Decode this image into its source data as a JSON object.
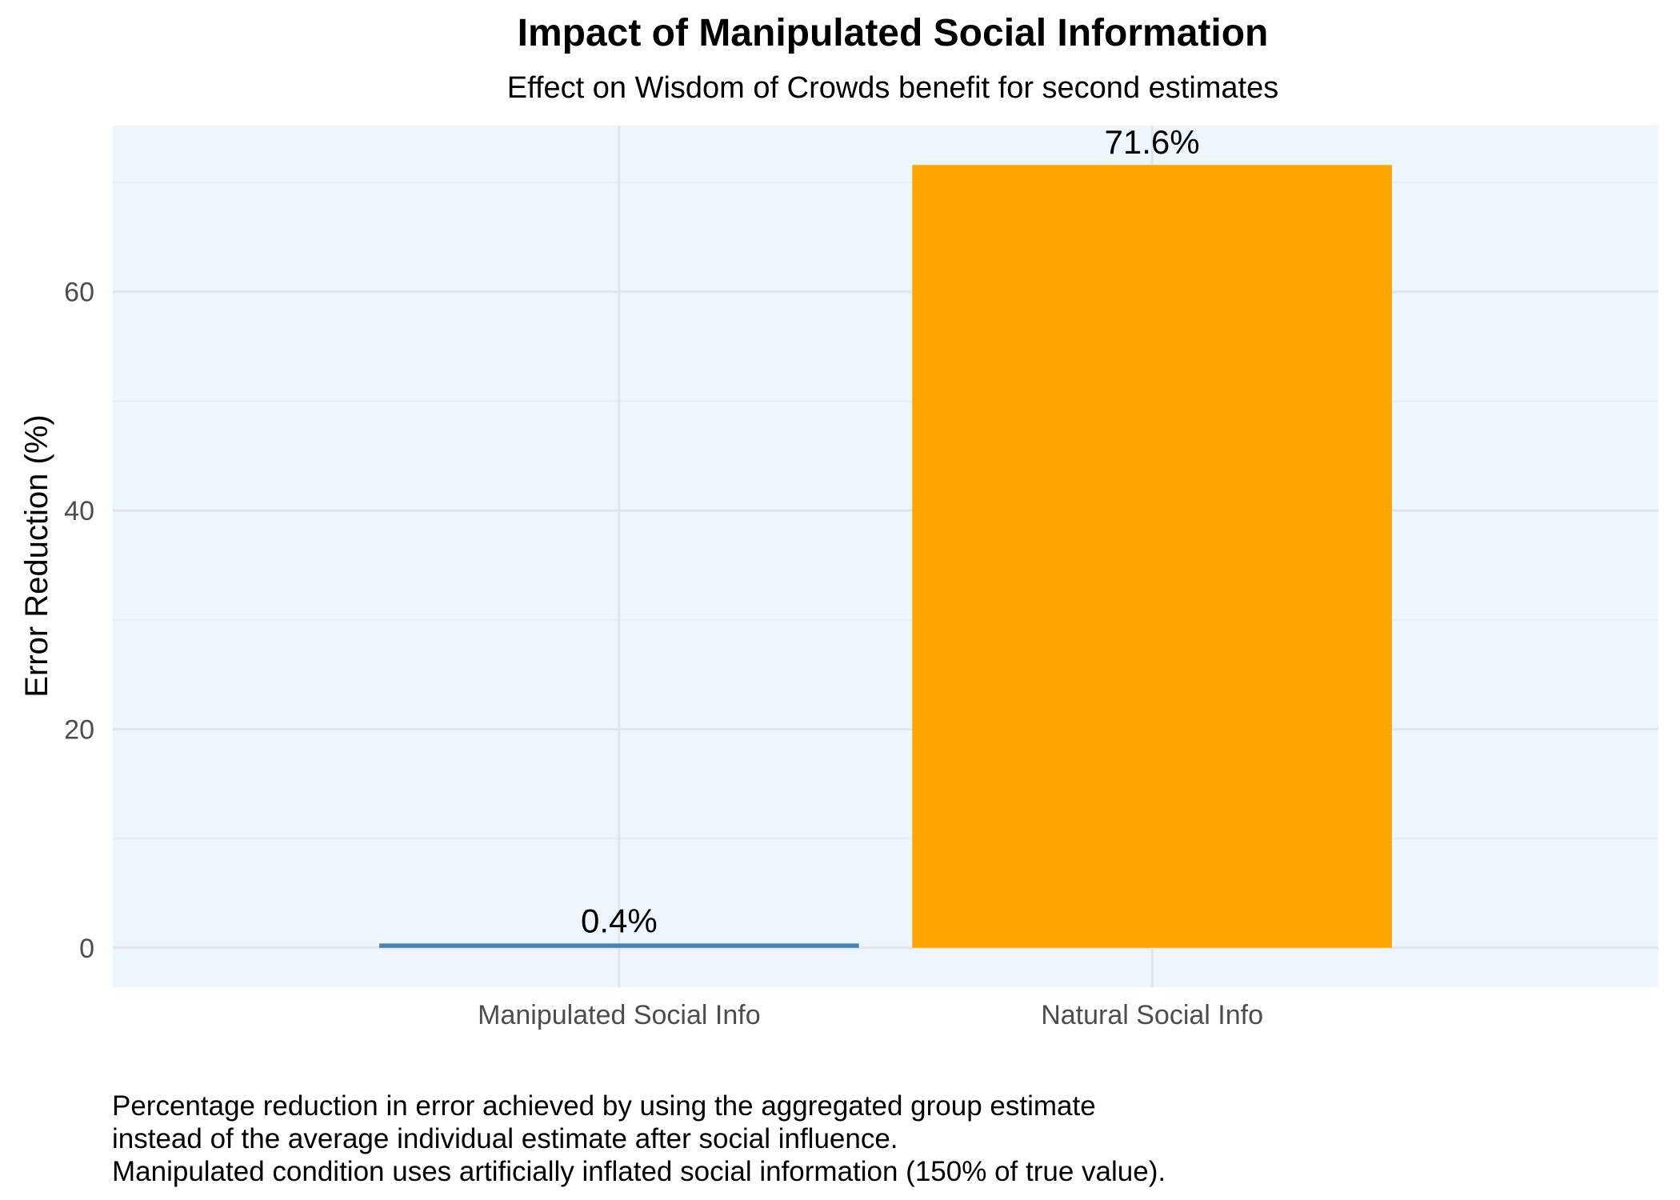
{
  "chart_data": {
    "type": "bar",
    "title": "Impact of Manipulated Social Information",
    "subtitle": "Effect on Wisdom of Crowds benefit for second estimates",
    "xlabel": "",
    "ylabel": "Error Reduction (%)",
    "categories": [
      "Manipulated Social Info",
      "Natural Social Info"
    ],
    "values": [
      0.4,
      71.6
    ],
    "data_labels": [
      "0.4%",
      "71.6%"
    ],
    "colors": [
      "#4682B4",
      "#FFA500"
    ],
    "ylim": [
      -3.6,
      75.2
    ],
    "yticks": [
      0,
      20,
      40,
      60
    ],
    "ytick_labels": [
      "0",
      "20",
      "40",
      "60"
    ],
    "grid": true,
    "legend": "none",
    "panel_background": "#EEF6FD",
    "caption": [
      "Percentage reduction in error achieved by using the aggregated group estimate",
      "instead of the average individual estimate after social influence.",
      "Manipulated condition uses artificially inflated social information (150% of true value)."
    ]
  }
}
